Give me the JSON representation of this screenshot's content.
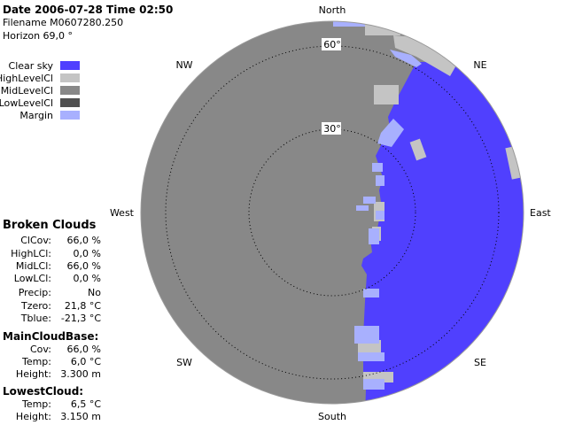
{
  "header": {
    "date_time": "Date 2006-07-28  Time 02:50",
    "filename": "Filename M0607280.250",
    "horizon": "Horizon 69,0 °"
  },
  "legend": [
    {
      "label": "Clear sky",
      "color": "#5040fe"
    },
    {
      "label": "HighLevelCl",
      "color": "#c4c4c4"
    },
    {
      "label": "MidLevelCl",
      "color": "#888888"
    },
    {
      "label": "LowLevelCl",
      "color": "#505050"
    },
    {
      "label": "Margin",
      "color": "#a8b0fe"
    }
  ],
  "summary": {
    "title": "Broken Clouds",
    "rows": [
      {
        "k": "ClCov:",
        "v": "66,0 %"
      },
      {
        "k": "HighLCl:",
        "v": "0,0 %"
      },
      {
        "k": "MidLCl:",
        "v": "66,0 %"
      },
      {
        "k": "LowLCl:",
        "v": "0,0 %"
      },
      {
        "k": "Precip:",
        "v": "No"
      },
      {
        "k": "Tzero:",
        "v": "21,8 °C"
      },
      {
        "k": "Tblue:",
        "v": "-21,3 °C"
      }
    ]
  },
  "main_cloud_base": {
    "title": "MainCloudBase:",
    "rows": [
      {
        "k": "Cov:",
        "v": "66,0 %"
      },
      {
        "k": "Temp:",
        "v": "6,0 °C"
      },
      {
        "k": "Height:",
        "v": "3.300 m"
      }
    ]
  },
  "lowest_cloud": {
    "title": "LowestCloud:",
    "rows": [
      {
        "k": "Temp:",
        "v": "6,5 °C"
      },
      {
        "k": "Height:",
        "v": "3.150 m"
      }
    ]
  },
  "sky_plot": {
    "directions": {
      "north": "North",
      "ne": "NE",
      "east": "East",
      "se": "SE",
      "south": "South",
      "sw": "SW",
      "west": "West",
      "nw": "NW"
    },
    "ring_labels": {
      "r60": "60°",
      "r30": "30°"
    },
    "colors": {
      "clear": "#5040fe",
      "mid": "#888888",
      "high": "#c4c4c4",
      "margin": "#a8b0fe"
    }
  }
}
